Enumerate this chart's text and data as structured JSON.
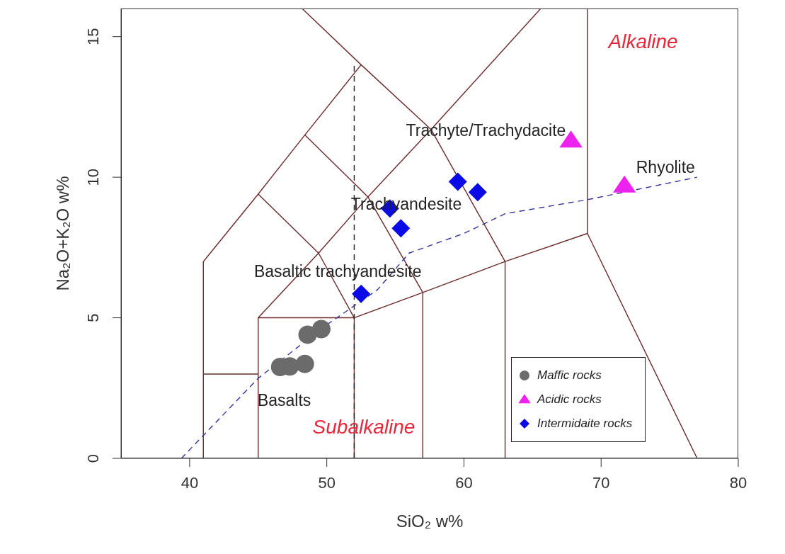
{
  "chart_data": {
    "type": "scatter",
    "xlabel": "SiO₂ w%",
    "ylabel": "Na₂O+K₂O w%",
    "xlim": [
      35,
      80
    ],
    "ylim": [
      0,
      16
    ],
    "xticks": [
      40,
      50,
      60,
      70,
      80
    ],
    "yticks": [
      0,
      5,
      10,
      15
    ],
    "grid": false,
    "legend": "bottom right",
    "series": [
      {
        "type": "line",
        "color": "#6b2a2a",
        "marker": "none",
        "line_style": "solid",
        "x": [
          41,
          41,
          45,
          48.4,
          52.5,
          48.2
        ],
        "values": [
          0,
          7,
          9.4,
          11.5,
          14,
          16
        ]
      },
      {
        "type": "line",
        "color": "#6b2a2a",
        "marker": "none",
        "line_style": "solid",
        "x": [
          41,
          45
        ],
        "values": [
          3,
          3
        ]
      },
      {
        "type": "line",
        "color": "#6b2a2a",
        "marker": "none",
        "line_style": "solid",
        "x": [
          45,
          45,
          52,
          52
        ],
        "values": [
          0,
          5,
          5,
          0
        ]
      },
      {
        "type": "line",
        "color": "#6b2a2a",
        "marker": "none",
        "line_style": "solid",
        "x": [
          45,
          49.4,
          53,
          57.6,
          65.6
        ],
        "values": [
          5,
          7.3,
          9.3,
          11.7,
          16
        ]
      },
      {
        "type": "line",
        "color": "#6b2a2a",
        "marker": "none",
        "line_style": "solid",
        "x": [
          45,
          49.4,
          52
        ],
        "values": [
          9.4,
          7.3,
          5
        ]
      },
      {
        "type": "line",
        "color": "#6b2a2a",
        "marker": "none",
        "line_style": "solid",
        "x": [
          48.4,
          53,
          57
        ],
        "values": [
          11.5,
          9.3,
          5.9
        ]
      },
      {
        "type": "line",
        "color": "#6b2a2a",
        "marker": "none",
        "line_style": "solid",
        "x": [
          52.5,
          57.6,
          63,
          63
        ],
        "values": [
          14,
          11.7,
          7,
          0
        ]
      },
      {
        "type": "line",
        "color": "#6b2a2a",
        "marker": "none",
        "line_style": "solid",
        "x": [
          52,
          57,
          63,
          69,
          77
        ],
        "values": [
          5,
          5.9,
          7,
          8,
          0
        ]
      },
      {
        "type": "line",
        "color": "#6b2a2a",
        "marker": "none",
        "line_style": "solid",
        "x": [
          57,
          57
        ],
        "values": [
          5.9,
          0
        ]
      },
      {
        "type": "line",
        "color": "#6b2a2a",
        "marker": "none",
        "line_style": "solid",
        "x": [
          69,
          69
        ],
        "values": [
          8,
          16
        ]
      },
      {
        "type": "line",
        "color": "#222222",
        "marker": "none",
        "line_style": "dashed",
        "x": [
          52,
          52
        ],
        "values": [
          0,
          14
        ]
      },
      {
        "type": "line",
        "color": "#333399",
        "marker": "none",
        "line_style": "dashed",
        "x": [
          39.4,
          45,
          48,
          50,
          53.7,
          56,
          60,
          63,
          69,
          77
        ],
        "values": [
          0,
          2.85,
          4,
          4.75,
          6,
          7.3,
          8,
          8.7,
          9.2,
          10
        ]
      },
      {
        "name": "Maffic rocks",
        "color": "#6b6b6b",
        "marker": "circle",
        "x": [
          46.6,
          47.3,
          48.4,
          48.6,
          49.6
        ],
        "values": [
          3.25,
          3.27,
          3.36,
          4.4,
          4.6
        ]
      },
      {
        "name": "Acidic rocks",
        "color": "#ee22ee",
        "marker": "triangle",
        "x": [
          67.8,
          71.7
        ],
        "values": [
          11.3,
          9.7
        ]
      },
      {
        "name": "Intermidaite rocks",
        "color": "#0a0ae6",
        "marker": "diamond",
        "x": [
          54.6,
          55.4,
          52.5,
          59.55,
          61.0
        ],
        "values": [
          8.89,
          8.18,
          5.85,
          9.84,
          9.47
        ]
      }
    ],
    "annotations": [
      "Trachyte/Trachydacite",
      "Rhyolite",
      "Trachyandesite",
      "Basaltic trachyandesite",
      "Basalts",
      "Subalkaline",
      "Alkaline"
    ]
  }
}
